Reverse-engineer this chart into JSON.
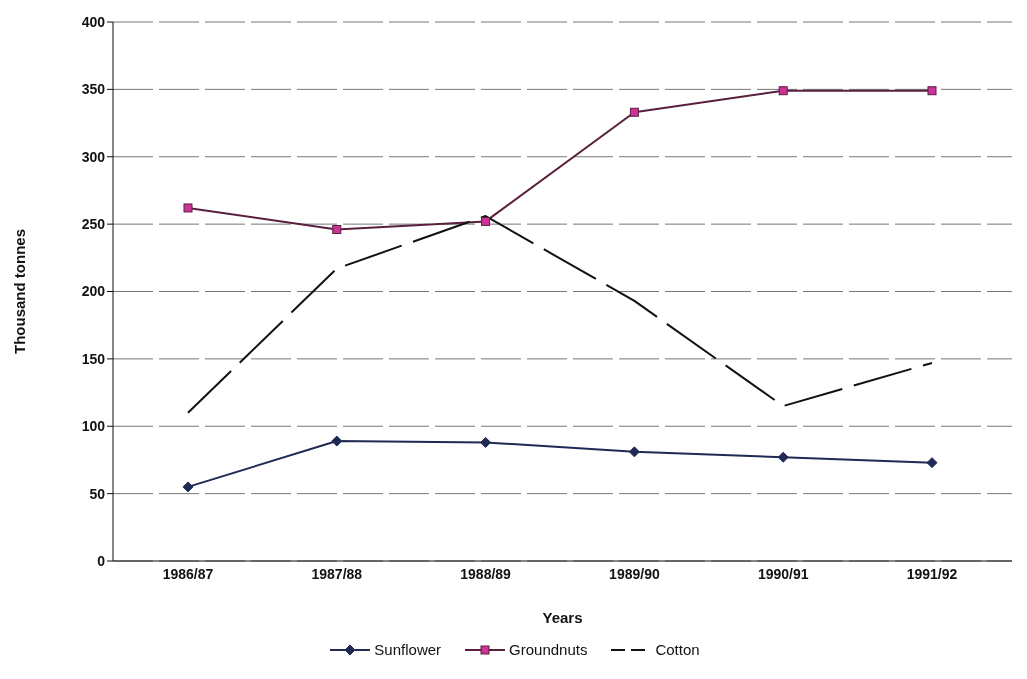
{
  "chart_data": {
    "type": "line",
    "xlabel": "Years",
    "ylabel": "Thousand  tonnes",
    "categories": [
      "1986/87",
      "1987/88",
      "1988/89",
      "1989/90",
      "1990/91",
      "1991/92"
    ],
    "series": [
      {
        "name": "Sunflower",
        "color": "#1f2a55",
        "values": [
          55,
          89,
          88,
          81,
          77,
          73
        ],
        "marker": "diamond",
        "line_style": "solid"
      },
      {
        "name": "Groundnuts",
        "color": "#5a1f3c",
        "values": [
          262,
          246,
          252,
          333,
          349,
          349
        ],
        "marker": "square",
        "line_style": "solid"
      },
      {
        "name": "Cotton",
        "color": "#111111",
        "values": [
          110,
          217,
          256,
          193,
          115,
          147
        ],
        "marker": "none",
        "line_style": "dashed"
      }
    ],
    "ylim": [
      0,
      400
    ],
    "yticks": [
      0,
      50,
      100,
      150,
      200,
      250,
      300,
      350,
      400
    ],
    "grid": "y",
    "legend": "bottom"
  }
}
